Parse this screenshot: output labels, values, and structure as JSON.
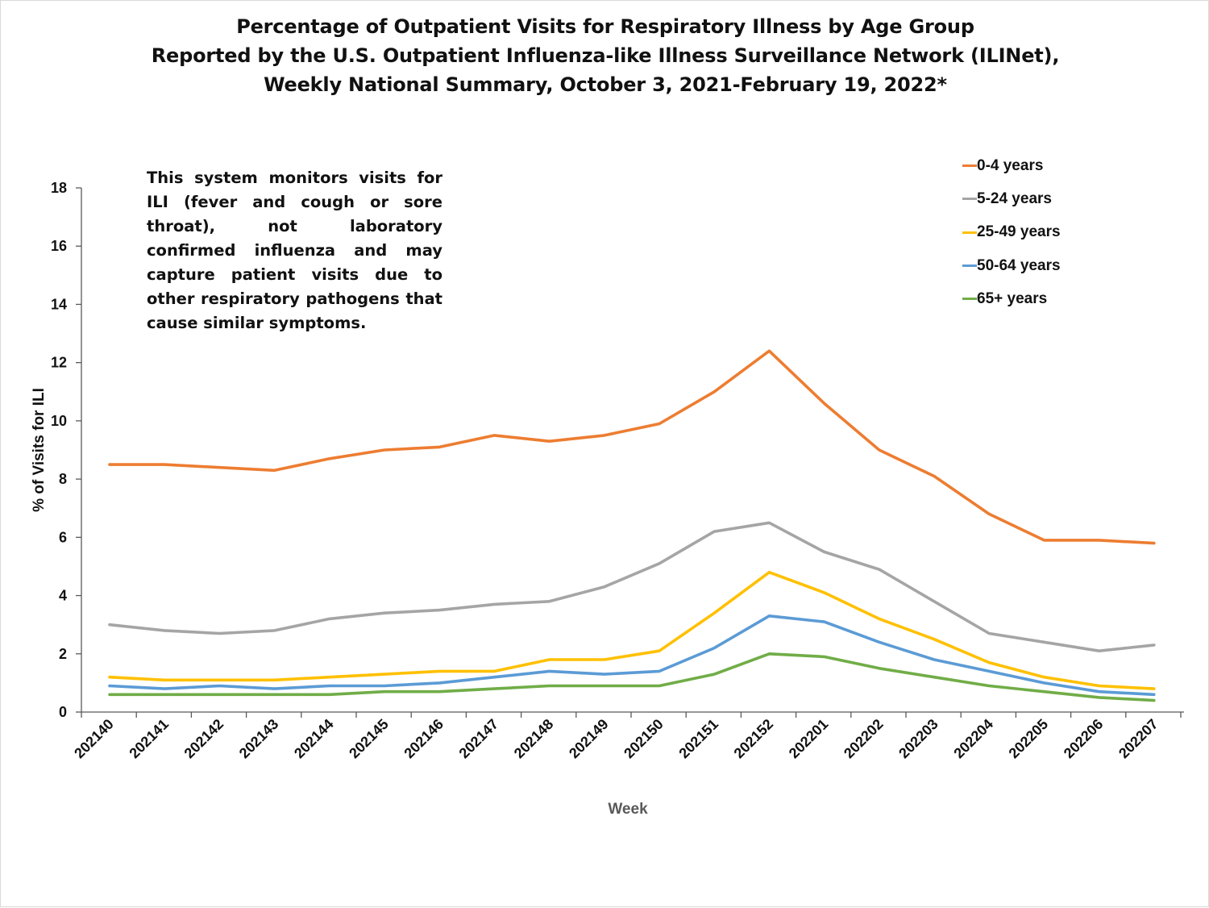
{
  "chart_data": {
    "type": "line",
    "title_lines": [
      "Percentage of Outpatient Visits for Respiratory Illness by Age Group",
      "Reported by the U.S. Outpatient Influenza-like Illness Surveillance Network (ILINet),",
      "Weekly National Summary, October 3, 2021-February 19, 2022*"
    ],
    "note": "This system monitors visits for ILI (fever and cough or sore throat), not laboratory confirmed influenza and may capture patient visits due to other respiratory pathogens that cause similar symptoms.",
    "xlabel": "Week",
    "ylabel": "% of Visits for ILI",
    "ylim": [
      0,
      18
    ],
    "yticks": [
      0,
      2,
      4,
      6,
      8,
      10,
      12,
      14,
      16,
      18
    ],
    "grid": false,
    "legend_position": "top-right",
    "categories": [
      "202140",
      "202141",
      "202142",
      "202143",
      "202144",
      "202145",
      "202146",
      "202147",
      "202148",
      "202149",
      "202150",
      "202151",
      "202152",
      "202201",
      "202202",
      "202203",
      "202204",
      "202205",
      "202206",
      "202207"
    ],
    "series": [
      {
        "name": "0-4 years",
        "color": "#ED7D31",
        "values": [
          8.5,
          8.5,
          8.4,
          8.3,
          8.7,
          9.0,
          9.1,
          9.5,
          9.3,
          9.5,
          9.9,
          11.0,
          12.4,
          10.6,
          9.0,
          8.1,
          6.8,
          5.9,
          5.9,
          5.8
        ]
      },
      {
        "name": "5-24 years",
        "color": "#A5A5A5",
        "values": [
          3.0,
          2.8,
          2.7,
          2.8,
          3.2,
          3.4,
          3.5,
          3.7,
          3.8,
          4.3,
          5.1,
          6.2,
          6.5,
          5.5,
          4.9,
          3.8,
          2.7,
          2.4,
          2.1,
          2.3
        ]
      },
      {
        "name": "25-49 years",
        "color": "#FFC000",
        "values": [
          1.2,
          1.1,
          1.1,
          1.1,
          1.2,
          1.3,
          1.4,
          1.4,
          1.8,
          1.8,
          2.1,
          3.4,
          4.8,
          4.1,
          3.2,
          2.5,
          1.7,
          1.2,
          0.9,
          0.8
        ]
      },
      {
        "name": "50-64 years",
        "color": "#5B9BD5",
        "values": [
          0.9,
          0.8,
          0.9,
          0.8,
          0.9,
          0.9,
          1.0,
          1.2,
          1.4,
          1.3,
          1.4,
          2.2,
          3.3,
          3.1,
          2.4,
          1.8,
          1.4,
          1.0,
          0.7,
          0.6
        ]
      },
      {
        "name": "65+ years",
        "color": "#70AD47",
        "values": [
          0.6,
          0.6,
          0.6,
          0.6,
          0.6,
          0.7,
          0.7,
          0.8,
          0.9,
          0.9,
          0.9,
          1.3,
          2.0,
          1.9,
          1.5,
          1.2,
          0.9,
          0.7,
          0.5,
          0.4
        ]
      }
    ]
  },
  "colors": {
    "axis": "#595959",
    "text": "#111111",
    "axis_title_gray": "#595959"
  }
}
